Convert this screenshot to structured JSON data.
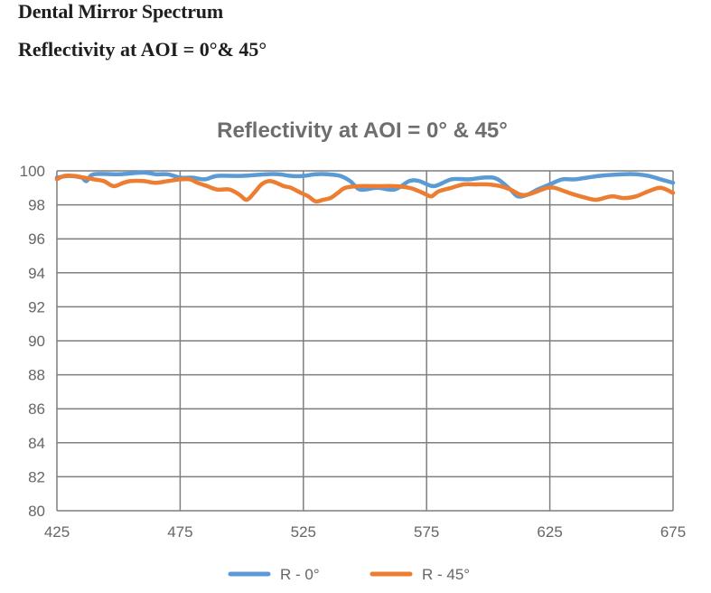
{
  "document": {
    "title": "Dental Mirror Spectrum",
    "subtitle": "Reflectivity at AOI = 0°& 45°"
  },
  "chart_data": {
    "type": "line",
    "title": "Reflectivity at AOI = 0°  & 45°",
    "xlabel": "",
    "ylabel": "",
    "xlim": [
      425,
      675
    ],
    "ylim": [
      80,
      100
    ],
    "x_ticks": [
      425,
      475,
      525,
      575,
      625,
      675
    ],
    "y_ticks": [
      80,
      82,
      84,
      86,
      88,
      90,
      92,
      94,
      96,
      98,
      100
    ],
    "grid": true,
    "legend_position": "bottom",
    "series": [
      {
        "name": "R - 0°",
        "color": "#5b9bd5",
        "x": [
          425,
          430,
          435,
          437,
          440,
          450,
          460,
          465,
          470,
          475,
          480,
          485,
          490,
          500,
          510,
          515,
          520,
          525,
          530,
          535,
          540,
          544,
          548,
          555,
          562,
          568,
          572,
          578,
          585,
          592,
          598,
          602,
          605,
          609,
          612,
          616,
          620,
          625,
          630,
          635,
          645,
          655,
          660,
          665,
          670,
          675
        ],
        "y": [
          99.6,
          99.7,
          99.6,
          99.4,
          99.8,
          99.8,
          99.9,
          99.8,
          99.8,
          99.6,
          99.6,
          99.5,
          99.7,
          99.7,
          99.8,
          99.8,
          99.7,
          99.7,
          99.8,
          99.8,
          99.7,
          99.4,
          98.9,
          99.0,
          98.9,
          99.4,
          99.4,
          99.1,
          99.5,
          99.5,
          99.6,
          99.6,
          99.4,
          98.9,
          98.5,
          98.6,
          98.9,
          99.2,
          99.5,
          99.5,
          99.7,
          99.8,
          99.8,
          99.7,
          99.5,
          99.3
        ]
      },
      {
        "name": "R - 45°",
        "color": "#ed7d31",
        "x": [
          425,
          428,
          432,
          436,
          440,
          444,
          448,
          452,
          455,
          460,
          465,
          470,
          475,
          479,
          482,
          486,
          490,
          495,
          499,
          502,
          505,
          508,
          511,
          514,
          517,
          520,
          524,
          527,
          530,
          533,
          536,
          539,
          542,
          548,
          555,
          562,
          568,
          572,
          575,
          577,
          580,
          585,
          590,
          595,
          600,
          605,
          609,
          613,
          616,
          620,
          624,
          627,
          631,
          635,
          640,
          644,
          650,
          655,
          660,
          665,
          670,
          675
        ],
        "y": [
          99.5,
          99.7,
          99.7,
          99.6,
          99.5,
          99.4,
          99.1,
          99.3,
          99.4,
          99.4,
          99.3,
          99.4,
          99.5,
          99.5,
          99.3,
          99.1,
          98.9,
          98.9,
          98.6,
          98.3,
          98.7,
          99.2,
          99.4,
          99.3,
          99.1,
          99.0,
          98.7,
          98.5,
          98.2,
          98.3,
          98.4,
          98.7,
          99.0,
          99.1,
          99.1,
          99.1,
          99.0,
          98.8,
          98.6,
          98.5,
          98.8,
          99.0,
          99.2,
          99.2,
          99.2,
          99.1,
          98.9,
          98.6,
          98.6,
          98.8,
          99.0,
          99.0,
          98.8,
          98.6,
          98.4,
          98.3,
          98.5,
          98.4,
          98.5,
          98.8,
          99.0,
          98.7
        ]
      }
    ]
  },
  "legend": [
    {
      "label": "R - 0°",
      "color": "#5b9bd5"
    },
    {
      "label": "R - 45°",
      "color": "#ed7d31"
    }
  ],
  "colors": {
    "grid": "#7f7f7f",
    "tick_text": "#666666",
    "title_text": "#6e6e6e"
  }
}
